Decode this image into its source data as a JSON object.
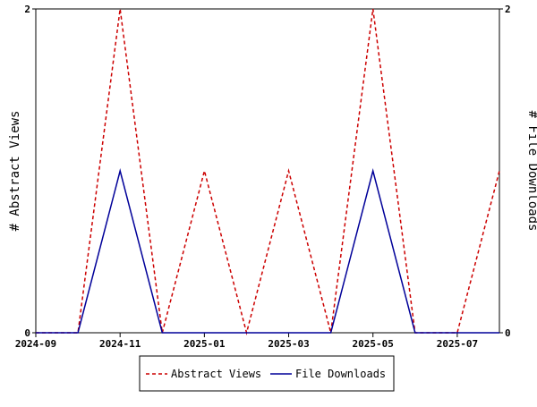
{
  "chart_data": {
    "type": "line",
    "x": [
      "2024-09",
      "2024-10",
      "2024-11",
      "2024-12",
      "2025-01",
      "2025-02",
      "2025-03",
      "2025-04",
      "2025-05",
      "2025-06",
      "2025-07",
      "2025-08"
    ],
    "x_ticks": [
      "2024-09",
      "2024-11",
      "2025-01",
      "2025-03",
      "2025-05",
      "2025-07"
    ],
    "series": [
      {
        "name": "Abstract Views",
        "axis": "left",
        "color": "#cc0000",
        "dash": "dashed",
        "values": [
          0,
          0,
          2,
          0,
          1,
          0,
          1,
          0,
          2,
          0,
          0,
          1
        ]
      },
      {
        "name": "File Downloads",
        "axis": "right",
        "color": "#000099",
        "dash": "solid",
        "values": [
          0,
          0,
          1,
          0,
          0,
          0,
          0,
          0,
          1,
          0,
          0,
          0
        ]
      }
    ],
    "ylabel_left": "# Abstract Views",
    "ylabel_right": "# File Downloads",
    "ylim_left": [
      0,
      2
    ],
    "ylim_right": [
      0,
      2
    ],
    "y_ticks_left": [
      "0",
      "2"
    ],
    "y_ticks_right": [
      "0",
      "2"
    ],
    "grid": false,
    "legend_position": "bottom"
  }
}
